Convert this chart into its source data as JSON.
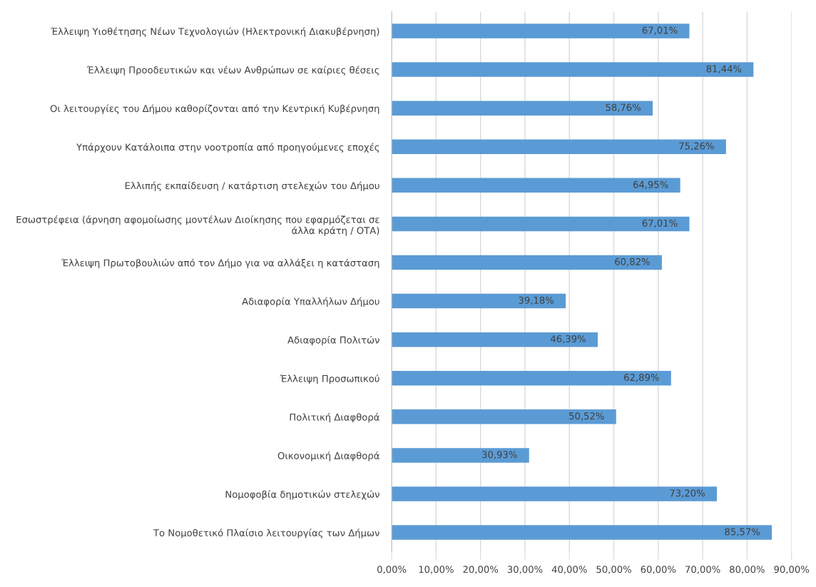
{
  "chart_data": {
    "type": "bar",
    "orientation": "horizontal",
    "categories": [
      "Έλλειψη Υιοθέτησης Νέων Τεχνολογιών (Ηλεκτρονική Διακυβέρνηση)",
      "Έλλειψη Προοδευτικών και νέων Ανθρώπων σε καίριες θέσεις",
      "Οι λειτουργίες του Δήμου καθορίζονται από την Κεντρική Κυβέρνηση",
      "Υπάρχουν Κατάλοιπα στην νοοτροπία από προηγούμενες εποχές",
      "Ελλιπής εκπαίδευση / κατάρτιση στελεχών του Δήμου",
      "Εσωστρέφεια (άρνηση αφομοίωσης μοντέλων Διοίκησης που εφαρμόζεται σε άλλα κράτη / ΟΤΑ)",
      "Έλλειψη Πρωτοβουλιών από τον Δήμο για να αλλάξει η κατάσταση",
      "Αδιαφορία Υπαλλήλων Δήμου",
      "Αδιαφορία Πολιτών",
      "Έλλειψη Προσωπικού",
      "Πολιτική Διαφθορά",
      "Οικονομική Διαφθορά",
      "Νομοφοβία δημοτικών στελεχών",
      "Το Νομοθετικό Πλαίσιο λειτουργίας των Δήμων"
    ],
    "values": [
      67.01,
      81.44,
      58.76,
      75.26,
      64.95,
      67.01,
      60.82,
      39.18,
      46.39,
      62.89,
      50.52,
      30.93,
      73.2,
      85.57
    ],
    "value_labels": [
      "67,01%",
      "81,44%",
      "58,76%",
      "75,26%",
      "64,95%",
      "67,01%",
      "60,82%",
      "39,18%",
      "46,39%",
      "62,89%",
      "50,52%",
      "30,93%",
      "73,20%",
      "85,57%"
    ],
    "color": "#5b9bd5",
    "xlim": [
      0,
      90
    ],
    "xticks": [
      {
        "value": 0,
        "label": "0,00%"
      },
      {
        "value": 10,
        "label": "10,00%"
      },
      {
        "value": 20,
        "label": "20,00%"
      },
      {
        "value": 30,
        "label": "30,00%"
      },
      {
        "value": 40,
        "label": "40,00%"
      },
      {
        "value": 50,
        "label": "50,00%"
      },
      {
        "value": 60,
        "label": "60,00%"
      },
      {
        "value": 70,
        "label": "70,00%"
      },
      {
        "value": 80,
        "label": "80,00%"
      },
      {
        "value": 90,
        "label": "90,00%"
      }
    ],
    "grid": "x"
  }
}
